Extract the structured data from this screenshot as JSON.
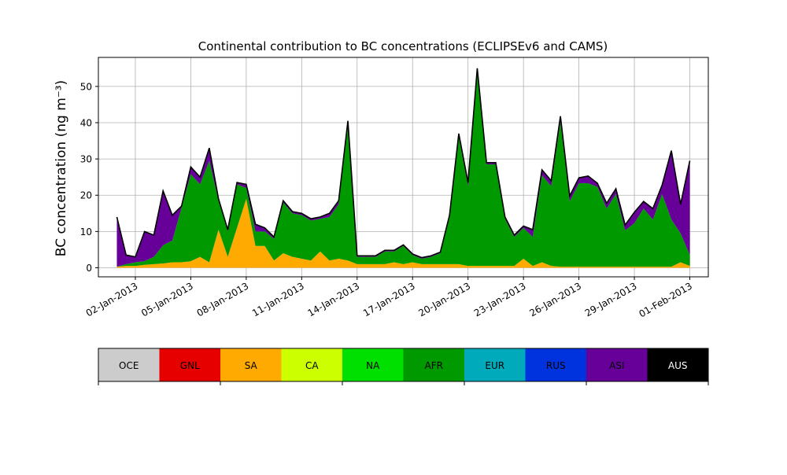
{
  "chart_data": {
    "type": "area",
    "stacked": true,
    "title": "Continental contribution to BC concentrations (ECLIPSEv6 and CAMS)",
    "ylabel": "BC concentration (ng m⁻³)",
    "xlabel": "",
    "xlim": [
      "2012-12-31",
      "2013-02-02"
    ],
    "ylim": [
      -2.5,
      58
    ],
    "grid": true,
    "x_tick_labels": [
      "02-Jan-2013",
      "05-Jan-2013",
      "08-Jan-2013",
      "11-Jan-2013",
      "14-Jan-2013",
      "17-Jan-2013",
      "20-Jan-2013",
      "23-Jan-2013",
      "26-Jan-2013",
      "29-Jan-2013",
      "01-Feb-2013"
    ],
    "y_tick_values": [
      0,
      10,
      20,
      30,
      40,
      50
    ],
    "y_tick_labels": [
      "0",
      "10",
      "20",
      "30",
      "40",
      "50"
    ],
    "x": [
      "2013-01-01",
      "2013-01-01 12:00",
      "2013-01-02",
      "2013-01-02 12:00",
      "2013-01-03",
      "2013-01-03 12:00",
      "2013-01-04",
      "2013-01-04 12:00",
      "2013-01-05",
      "2013-01-05 12:00",
      "2013-01-06",
      "2013-01-06 12:00",
      "2013-01-07",
      "2013-01-07 12:00",
      "2013-01-08",
      "2013-01-08 12:00",
      "2013-01-09",
      "2013-01-09 12:00",
      "2013-01-10",
      "2013-01-10 12:00",
      "2013-01-11",
      "2013-01-11 12:00",
      "2013-01-12",
      "2013-01-12 12:00",
      "2013-01-13",
      "2013-01-13 12:00",
      "2013-01-14",
      "2013-01-14 12:00",
      "2013-01-15",
      "2013-01-15 12:00",
      "2013-01-16",
      "2013-01-16 12:00",
      "2013-01-17",
      "2013-01-17 12:00",
      "2013-01-18",
      "2013-01-18 12:00",
      "2013-01-19",
      "2013-01-19 12:00",
      "2013-01-20",
      "2013-01-20 12:00",
      "2013-01-21",
      "2013-01-21 12:00",
      "2013-01-22",
      "2013-01-22 12:00",
      "2013-01-23",
      "2013-01-23 12:00",
      "2013-01-24",
      "2013-01-24 12:00",
      "2013-01-25",
      "2013-01-25 12:00",
      "2013-01-26",
      "2013-01-26 12:00",
      "2013-01-27",
      "2013-01-27 12:00",
      "2013-01-28",
      "2013-01-28 12:00",
      "2013-01-29",
      "2013-01-29 12:00",
      "2013-01-30",
      "2013-01-30 12:00",
      "2013-01-31",
      "2013-01-31 12:00",
      "2013-02-01"
    ],
    "series": [
      {
        "name": "OCE",
        "color": "#cccccc",
        "values": [
          0,
          0,
          0,
          0,
          0,
          0,
          0,
          0,
          0,
          0,
          0,
          0,
          0,
          0,
          0,
          0,
          0,
          0,
          0,
          0,
          0,
          0,
          0,
          0,
          0,
          0,
          0,
          0,
          0,
          0,
          0,
          0,
          0,
          0,
          0,
          0,
          0,
          0,
          0,
          0,
          0,
          0,
          0,
          0,
          0,
          0,
          0,
          0,
          0,
          0,
          0,
          0,
          0,
          0,
          0,
          0,
          0,
          0,
          0,
          0,
          0,
          0,
          0
        ]
      },
      {
        "name": "GNL",
        "color": "#e60000",
        "values": [
          0,
          0,
          0,
          0,
          0,
          0,
          0,
          0,
          0,
          0,
          0,
          0,
          0,
          0,
          0,
          0,
          0,
          0,
          0,
          0,
          0,
          0,
          0,
          0,
          0,
          0,
          0,
          0,
          0,
          0,
          0,
          0,
          0,
          0,
          0,
          0,
          0,
          0,
          0,
          0,
          0,
          0,
          0,
          0,
          0,
          0,
          0,
          0,
          0,
          0,
          0,
          0,
          0,
          0,
          0,
          0,
          0,
          0,
          0,
          0,
          0,
          0,
          0
        ]
      },
      {
        "name": "SA",
        "color": "#ffaa00",
        "values": [
          0.3,
          0.5,
          0.5,
          0.8,
          1.0,
          1.2,
          1.5,
          1.5,
          1.8,
          3.0,
          1.5,
          10.5,
          3.0,
          11.0,
          19.0,
          6.0,
          6.0,
          2.0,
          4.0,
          3.0,
          2.5,
          2.0,
          4.5,
          2.0,
          2.5,
          2.0,
          1.0,
          1.0,
          1.0,
          1.0,
          1.5,
          1.0,
          1.5,
          1.0,
          1.0,
          1.0,
          1.0,
          1.0,
          0.5,
          0.5,
          0.5,
          0.5,
          0.5,
          0.5,
          2.5,
          0.5,
          1.5,
          0.5,
          0.3,
          0.3,
          0.3,
          0.3,
          0.3,
          0.3,
          0.3,
          0.3,
          0.3,
          0.3,
          0.3,
          0.3,
          0.3,
          1.5,
          0.5
        ]
      },
      {
        "name": "CA",
        "color": "#ccff00",
        "values": [
          0,
          0,
          0,
          0,
          0,
          0,
          0,
          0,
          0,
          0,
          0,
          0,
          0,
          0,
          0,
          0,
          0,
          0,
          0,
          0,
          0,
          0,
          0,
          0,
          0,
          0,
          0,
          0,
          0,
          0,
          0,
          0,
          0,
          0,
          0,
          0,
          0,
          0,
          0,
          0,
          0,
          0,
          0,
          0,
          0,
          0,
          0,
          0,
          0,
          0,
          0,
          0,
          0,
          0,
          0,
          0,
          0,
          0,
          0,
          0,
          0,
          0,
          0
        ]
      },
      {
        "name": "NA",
        "color": "#00e000",
        "values": [
          0,
          0,
          0,
          0,
          0,
          0,
          0,
          0,
          0,
          0,
          0,
          0,
          0,
          0,
          0,
          0,
          0,
          0,
          0,
          0,
          0,
          0,
          0,
          0,
          0,
          0,
          0,
          0,
          0,
          0,
          0,
          0,
          0,
          0,
          0,
          0,
          0,
          0,
          0,
          0,
          0,
          0,
          0,
          0,
          0,
          0,
          0,
          0,
          0,
          0,
          0,
          0,
          0,
          0,
          0,
          0,
          0,
          0,
          0,
          0,
          0,
          0,
          0
        ]
      },
      {
        "name": "AFR",
        "color": "#009900",
        "values": [
          0.0,
          0.5,
          1.0,
          1.0,
          2.0,
          5.0,
          6.0,
          15.0,
          24.0,
          20.0,
          28.0,
          8.0,
          7.0,
          12.0,
          3.0,
          4.0,
          4.0,
          6.0,
          14.0,
          12.0,
          12.0,
          11.0,
          9.0,
          12.0,
          15.0,
          38.0,
          2.0,
          2.0,
          2.0,
          3.5,
          3.0,
          5.0,
          2.0,
          1.5,
          2.0,
          3.0,
          13.0,
          35.0,
          22.0,
          54.0,
          28.0,
          28.0,
          13.0,
          8.0,
          8.5,
          8.0,
          24.0,
          22.0,
          40.0,
          18.0,
          23.0,
          23.0,
          22.0,
          16.0,
          20.0,
          10.0,
          12.0,
          16.0,
          13.0,
          20.0,
          13.0,
          8.0,
          3.0
        ]
      },
      {
        "name": "EUR",
        "color": "#00aabb",
        "values": [
          0,
          0,
          0,
          0,
          0,
          0,
          0,
          0,
          0,
          0,
          0,
          0,
          0,
          0,
          0,
          0,
          0,
          0,
          0,
          0,
          0,
          0,
          0,
          0,
          0,
          0,
          0,
          0,
          0,
          0,
          0,
          0,
          0,
          0,
          0,
          0,
          0,
          0,
          0,
          0,
          0,
          0,
          0,
          0,
          0,
          0,
          0,
          0,
          0,
          0,
          0,
          0,
          0,
          0,
          0,
          0,
          0,
          0,
          0,
          0,
          0,
          0,
          0
        ]
      },
      {
        "name": "RUS",
        "color": "#0033dd",
        "values": [
          0,
          0,
          0,
          0,
          0,
          0,
          0,
          0,
          0,
          0,
          0,
          0,
          0,
          0,
          0,
          0,
          0,
          0,
          0,
          0,
          0,
          0,
          0,
          0,
          0,
          0,
          0,
          0,
          0,
          0,
          0,
          0,
          0,
          0,
          0,
          0,
          0,
          0,
          0,
          0,
          0,
          0,
          0,
          0,
          0,
          0,
          0,
          0,
          0,
          0,
          0,
          0,
          0,
          0,
          0,
          0,
          0,
          0,
          0,
          0,
          0,
          0,
          0
        ]
      },
      {
        "name": "ASI",
        "color": "#660099",
        "values": [
          13.7,
          2.5,
          1.5,
          8.2,
          6.0,
          15.0,
          7.0,
          0.5,
          2.0,
          2.0,
          3.5,
          0.5,
          0.5,
          0.5,
          1.0,
          2.0,
          1.0,
          0.5,
          0.5,
          0.5,
          0.5,
          0.5,
          0.5,
          1.0,
          1.0,
          0.5,
          0.3,
          0.3,
          0.3,
          0.3,
          0.3,
          0.3,
          0.3,
          0.3,
          0.3,
          0.3,
          0.5,
          1.0,
          1.0,
          0.5,
          0.5,
          0.5,
          0.5,
          0.5,
          0.5,
          2.0,
          1.5,
          1.5,
          1.5,
          1.5,
          1.5,
          2.0,
          1.0,
          1.5,
          1.5,
          1.5,
          3.0,
          2.0,
          3.0,
          2.5,
          19.0,
          8.0,
          26.0
        ]
      },
      {
        "name": "AUS",
        "color": "#000000",
        "values": [
          0,
          0,
          0,
          0,
          0,
          0,
          0,
          0,
          0,
          0,
          0,
          0,
          0,
          0,
          0,
          0,
          0,
          0,
          0,
          0,
          0,
          0,
          0,
          0,
          0,
          0,
          0,
          0,
          0,
          0,
          0,
          0,
          0,
          0,
          0,
          0,
          0,
          0,
          0,
          0,
          0,
          0,
          0,
          0,
          0,
          0,
          0,
          0,
          0,
          0,
          0,
          0,
          0,
          0,
          0,
          0,
          0,
          0,
          0,
          0,
          0,
          0,
          0
        ]
      }
    ],
    "legend_placement": "below"
  }
}
